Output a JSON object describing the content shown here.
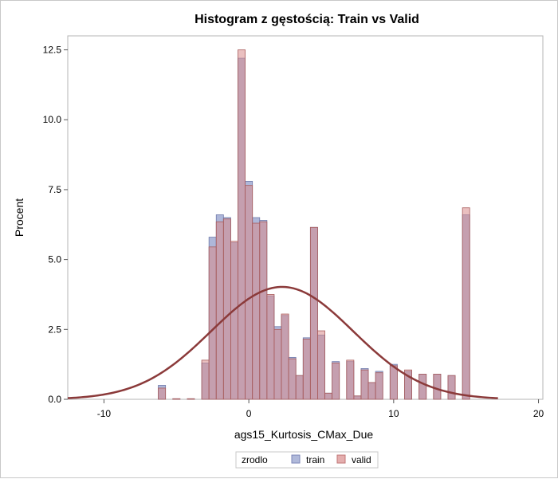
{
  "chart_data": {
    "type": "histogram",
    "title": "Histogram z gęstością: Train vs Valid",
    "xlabel": "ags15_Kurtosis_CMax_Due",
    "ylabel": "Procent",
    "xlim": [
      -12.5,
      20.3
    ],
    "ylim": [
      0,
      13.0
    ],
    "x_ticks": [
      {
        "value": -10,
        "label": "-10"
      },
      {
        "value": 0,
        "label": "0"
      },
      {
        "value": 10,
        "label": "10"
      },
      {
        "value": 20,
        "label": "20"
      }
    ],
    "y_ticks": [
      {
        "value": 0,
        "label": "0.0"
      },
      {
        "value": 2.5,
        "label": "2.5"
      },
      {
        "value": 5,
        "label": "5.0"
      },
      {
        "value": 7.5,
        "label": "7.5"
      },
      {
        "value": 10,
        "label": "10.0"
      },
      {
        "value": 12.5,
        "label": "12.5"
      }
    ],
    "bin_width": 0.5,
    "bin_centers": [
      -6.0,
      -5.0,
      -4.0,
      -3.0,
      -2.5,
      -2.0,
      -1.5,
      -1.0,
      -0.5,
      0.0,
      0.5,
      1.0,
      1.5,
      2.0,
      2.5,
      3.0,
      3.5,
      4.0,
      4.5,
      5.0,
      5.5,
      6.0,
      7.0,
      7.5,
      8.0,
      8.5,
      9.0,
      10.0,
      11.0,
      12.0,
      13.0,
      14.0,
      15.0
    ],
    "series": [
      {
        "name": "train",
        "color": "#8f9bcb",
        "values": [
          0.5,
          0.02,
          0.02,
          1.3,
          5.8,
          6.6,
          6.5,
          5.6,
          12.2,
          7.8,
          6.5,
          6.4,
          3.7,
          2.6,
          3.0,
          1.5,
          0.85,
          2.2,
          6.15,
          2.3,
          0.22,
          1.35,
          1.35,
          0.12,
          1.1,
          0.6,
          1.0,
          1.25,
          1.0,
          0.9,
          0.9,
          0.85,
          6.6
        ]
      },
      {
        "name": "valid",
        "color": "#d98c8c",
        "values": [
          0.4,
          0.02,
          0.02,
          1.4,
          5.45,
          6.35,
          6.45,
          5.65,
          12.5,
          7.65,
          6.3,
          6.35,
          3.75,
          2.5,
          3.05,
          1.45,
          0.85,
          2.15,
          6.15,
          2.45,
          0.22,
          1.3,
          1.4,
          0.12,
          1.05,
          0.6,
          0.95,
          1.2,
          1.05,
          0.9,
          0.9,
          0.85,
          6.85
        ]
      }
    ],
    "density_curve": {
      "type": "normal",
      "mean": 2.3,
      "sd": 4.9,
      "peak_percent": 4.02,
      "x_range": [
        -12.5,
        17.2
      ]
    },
    "curve_color": "#8b3a3a",
    "legend": {
      "title": "zrodlo",
      "position": "bottom-center",
      "entries": [
        "train",
        "valid"
      ]
    },
    "grid": false
  }
}
